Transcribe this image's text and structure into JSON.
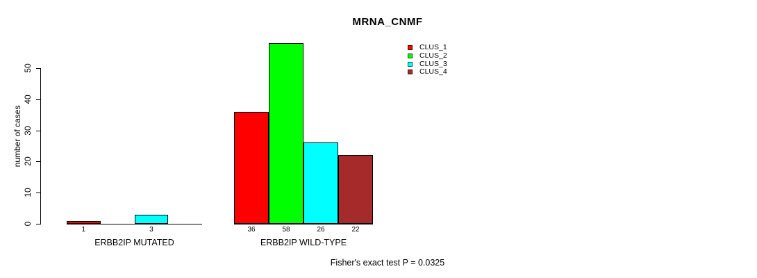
{
  "title": "MRNA_CNMF",
  "chart_data": {
    "type": "bar",
    "title": "MRNA_CNMF",
    "xlabel": "",
    "ylabel": "number of cases",
    "ylim": [
      0,
      58
    ],
    "yticks": [
      0,
      10,
      20,
      30,
      40,
      50
    ],
    "grid": false,
    "legend_position": "top-right",
    "annotation": "Fisher's exact test P = 0.0325",
    "legend": [
      {
        "label": "CLUS_1",
        "color": "#FF0000"
      },
      {
        "label": "CLUS_2",
        "color": "#00FF00"
      },
      {
        "label": "CLUS_3",
        "color": "#00FFFF"
      },
      {
        "label": "CLUS_4",
        "color": "#A52A2A"
      }
    ],
    "groups": [
      {
        "label": "ERBB2IP MUTATED",
        "bars": [
          {
            "series": "CLUS_1",
            "value": 1,
            "value_label": "1",
            "color": "#FF0000"
          },
          {
            "series": "CLUS_2",
            "value": 0,
            "value_label": "",
            "color": "#00FF00"
          },
          {
            "series": "CLUS_3",
            "value": 3,
            "value_label": "3",
            "color": "#00FFFF"
          },
          {
            "series": "CLUS_4",
            "value": 0,
            "value_label": "",
            "color": "#A52A2A"
          }
        ]
      },
      {
        "label": "ERBB2IP WILD-TYPE",
        "bars": [
          {
            "series": "CLUS_1",
            "value": 36,
            "value_label": "36",
            "color": "#FF0000"
          },
          {
            "series": "CLUS_2",
            "value": 58,
            "value_label": "58",
            "color": "#00FF00"
          },
          {
            "series": "CLUS_3",
            "value": 26,
            "value_label": "26",
            "color": "#00FFFF"
          },
          {
            "series": "CLUS_4",
            "value": 22,
            "value_label": "22",
            "color": "#A52A2A"
          }
        ]
      }
    ]
  },
  "colors": {
    "background": "#FFFFFF",
    "axis": "#000000",
    "text": "#000000"
  }
}
